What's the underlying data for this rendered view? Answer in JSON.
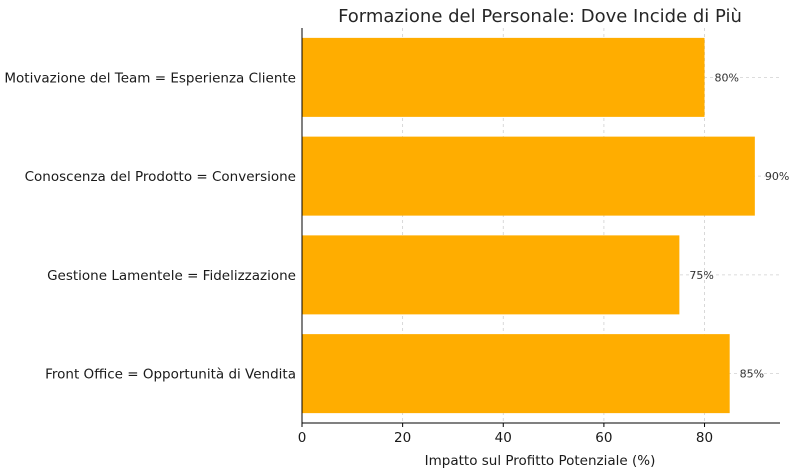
{
  "chart_data": {
    "type": "bar",
    "orientation": "horizontal",
    "title": "Formazione del Personale: Dove Incide di Più",
    "xlabel": "Impatto sul Profitto Potenziale (%)",
    "ylabel": "",
    "categories": [
      "Motivazione del Team = Esperienza Cliente",
      "Conoscenza del Prodotto = Conversione",
      "Gestione Lamentele = Fidelizzazione",
      "Front Office = Opportunità di Vendita"
    ],
    "values": [
      80,
      90,
      75,
      85
    ],
    "data_labels": [
      "80%",
      "90%",
      "75%",
      "85%"
    ],
    "xlim": [
      0,
      95
    ],
    "xticks": [
      0,
      20,
      40,
      60,
      80
    ],
    "xtick_labels": [
      "0",
      "20",
      "40",
      "60",
      "80"
    ],
    "grid": true,
    "bar_color": "#ffad00"
  }
}
